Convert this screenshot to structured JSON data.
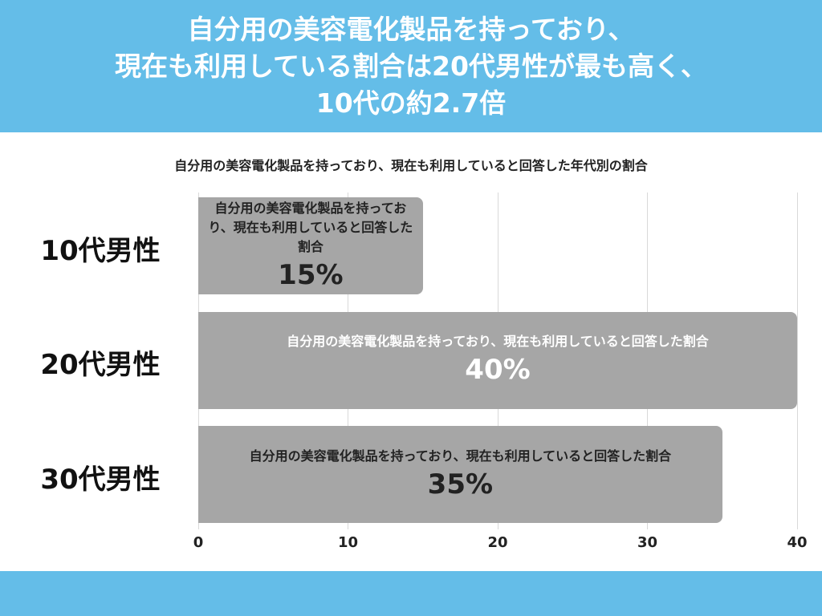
{
  "chart_data": {
    "type": "bar",
    "orientation": "horizontal",
    "title": [
      "自分用の美容電化製品を持っており、",
      "現在も利用している割合は20代男性が最も高く、",
      "10代の約2.7倍"
    ],
    "subtitle": "自分用の美容電化製品を持っており、現在も利用していると回答した年代別の割合",
    "categories": [
      "10代男性",
      "20代男性",
      "30代男性"
    ],
    "series": [
      {
        "name": "自分用の美容電化製品を持っており、現在も利用していると回答した割合",
        "color": "#a6a6a6",
        "values": [
          15,
          40,
          35
        ],
        "value_labels": [
          "15%",
          "40%",
          "35%"
        ],
        "label_colors": [
          "#222222",
          "#ffffff",
          "#222222"
        ]
      }
    ],
    "xlim": [
      0,
      40
    ],
    "xticks": [
      0,
      10,
      20,
      30,
      40
    ],
    "grid": true
  }
}
